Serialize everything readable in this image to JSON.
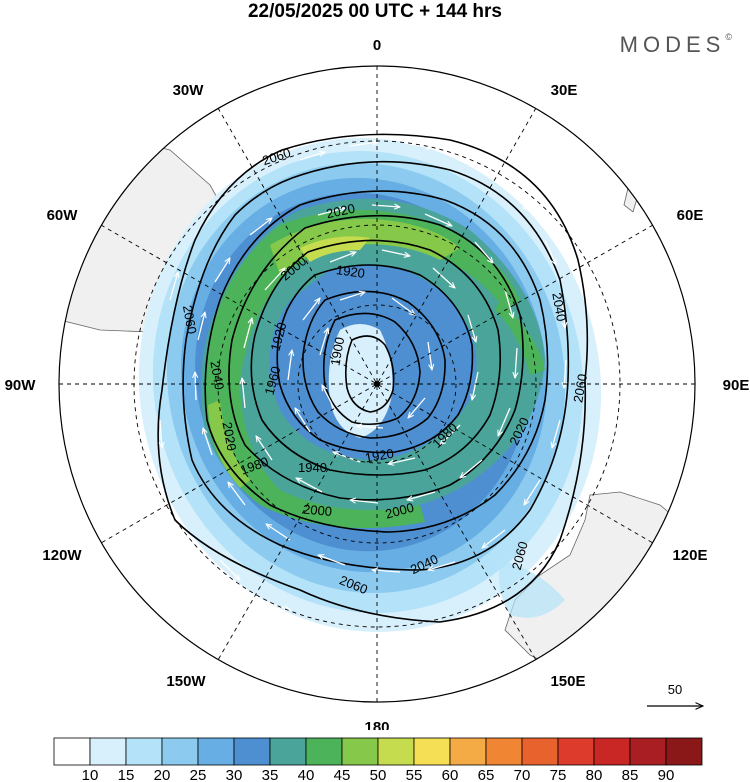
{
  "title": "22/05/2025  00 UTC  + 144 hrs",
  "brand": "MODES",
  "brand_mark": "©",
  "projection": "south-polar-stereographic",
  "longitude_labels": [
    {
      "text": "0",
      "lon": 0
    },
    {
      "text": "30E",
      "lon": 30
    },
    {
      "text": "60E",
      "lon": 60
    },
    {
      "text": "90E",
      "lon": 90
    },
    {
      "text": "120E",
      "lon": 120
    },
    {
      "text": "150E",
      "lon": 150
    },
    {
      "text": "180",
      "lon": 180
    },
    {
      "text": "150W",
      "lon": -150
    },
    {
      "text": "120W",
      "lon": -120
    },
    {
      "text": "90W",
      "lon": -90
    },
    {
      "text": "60W",
      "lon": -60
    },
    {
      "text": "30W",
      "lon": -30
    }
  ],
  "wind_shading": {
    "units_hint": "wind speed",
    "levels": [
      10,
      15,
      20,
      25,
      30,
      35,
      40,
      45,
      50,
      55,
      60,
      65,
      70,
      75,
      80,
      85,
      90
    ],
    "colors": [
      "#ffffff",
      "#d8f0fb",
      "#b4e2f8",
      "#8ccbef",
      "#66aee3",
      "#4d8fd1",
      "#4aa49a",
      "#4cb35a",
      "#86c94a",
      "#c5dc4f",
      "#f5df55",
      "#f5ab45",
      "#f08533",
      "#e8622d",
      "#dd3b2b",
      "#c92626",
      "#a81e22",
      "#8a1818"
    ]
  },
  "height_contours": {
    "labels": [
      "1900",
      "1920",
      "1940",
      "1960",
      "1980",
      "2000",
      "2020",
      "2040",
      "2060"
    ]
  },
  "reference_vector": {
    "label": "50"
  },
  "colors": {
    "contour": "#000000",
    "land": "#f0f0f0",
    "coast": "#555555",
    "grid": "#000000"
  }
}
